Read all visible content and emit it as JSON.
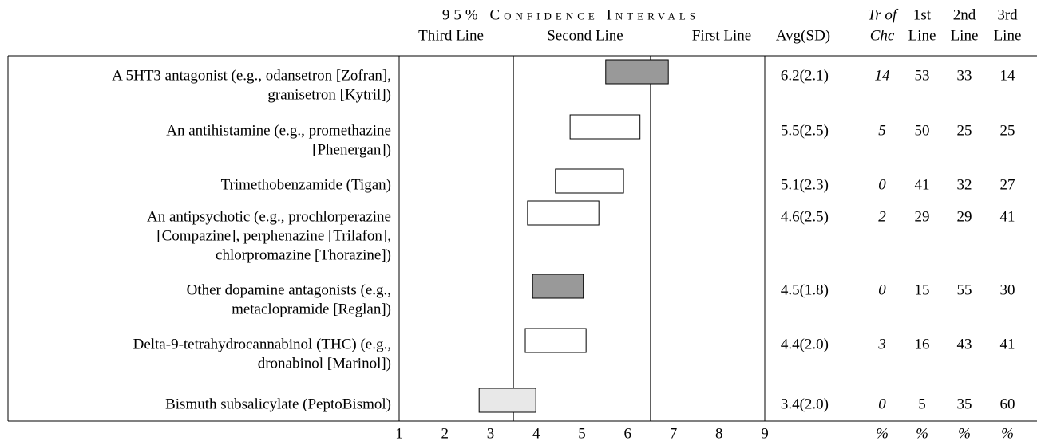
{
  "header": {
    "title": "95% Confidence Intervals",
    "zones": [
      "Third Line",
      "Second Line",
      "First Line"
    ],
    "columns": [
      [
        "Avg(SD)"
      ],
      [
        "Tr of",
        "Chc"
      ],
      [
        "1st",
        "Line"
      ],
      [
        "2nd",
        "Line"
      ],
      [
        "3rd",
        "Line"
      ]
    ],
    "units": [
      "%",
      "%",
      "%",
      "%"
    ]
  },
  "axis": {
    "xlim": [
      1,
      9
    ],
    "xticks": [
      1,
      2,
      3,
      4,
      5,
      6,
      7,
      8,
      9
    ],
    "dividers": [
      3.5,
      6.5
    ]
  },
  "rows": [
    {
      "label": [
        "A 5HT3 antagonist (e.g., odansetron [Zofran],",
        "granisetron [Kytril])"
      ],
      "ci": [
        5.52,
        6.89
      ],
      "color": "#999999",
      "avg": "6.2(2.1)",
      "tr": 14,
      "first": 53,
      "second": 33,
      "third": 14
    },
    {
      "label": [
        "An antihistamine (e.g., promethazine",
        "[Phenergan])"
      ],
      "ci": [
        4.74,
        6.27
      ],
      "color": "#ffffff",
      "avg": "5.5(2.5)",
      "tr": 5,
      "first": 50,
      "second": 25,
      "third": 25
    },
    {
      "label": [
        "Trimethobenzamide (Tigan)"
      ],
      "ci": [
        4.42,
        5.91
      ],
      "color": "#ffffff",
      "avg": "5.1(2.3)",
      "tr": 0,
      "first": 41,
      "second": 32,
      "third": 27
    },
    {
      "label": [
        "An antipsychotic (e.g., prochlorperazine",
        "[Compazine], perphenazine [Trilafon],",
        "chlorpromazine [Thorazine])"
      ],
      "ci": [
        3.81,
        5.37
      ],
      "color": "#ffffff",
      "avg": "4.6(2.5)",
      "tr": 2,
      "first": 29,
      "second": 29,
      "third": 41
    },
    {
      "label": [
        "Other dopamine antagonists (e.g.,",
        "metaclopramide [Reglan])"
      ],
      "ci": [
        3.92,
        5.03
      ],
      "color": "#999999",
      "avg": "4.5(1.8)",
      "tr": 0,
      "first": 15,
      "second": 55,
      "third": 30
    },
    {
      "label": [
        "Delta-9-tetrahydrocannabinol (THC) (e.g.,",
        "dronabinol [Marinol])"
      ],
      "ci": [
        3.76,
        5.09
      ],
      "color": "#ffffff",
      "avg": "4.4(2.0)",
      "tr": 3,
      "first": 16,
      "second": 43,
      "third": 41
    },
    {
      "label": [
        "Bismuth subsalicylate (PeptoBismol)"
      ],
      "ci": [
        2.75,
        3.99
      ],
      "color": "#e8e8e8",
      "avg": "3.4(2.0)",
      "tr": 0,
      "first": 5,
      "second": 35,
      "third": 60
    }
  ]
}
